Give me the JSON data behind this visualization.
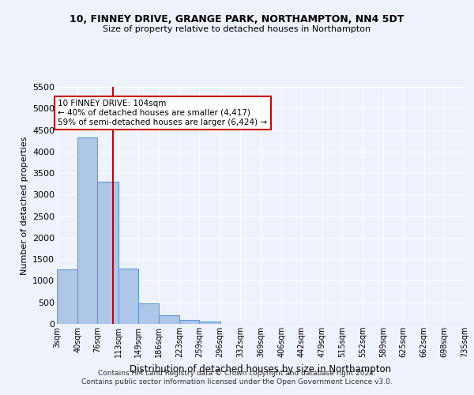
{
  "title_line1": "10, FINNEY DRIVE, GRANGE PARK, NORTHAMPTON, NN4 5DT",
  "title_line2": "Size of property relative to detached houses in Northampton",
  "xlabel": "Distribution of detached houses by size in Northampton",
  "ylabel": "Number of detached properties",
  "footer_line1": "Contains HM Land Registry data © Crown copyright and database right 2024.",
  "footer_line2": "Contains public sector information licensed under the Open Government Licence v3.0.",
  "annotation_line1": "10 FINNEY DRIVE: 104sqm",
  "annotation_line2": "← 40% of detached houses are smaller (4,417)",
  "annotation_line3": "59% of semi-detached houses are larger (6,424) →",
  "bar_color": "#aec6e8",
  "bar_edge_color": "#5b9bd5",
  "vline_color": "#cc0000",
  "background_color": "#eef2fb",
  "grid_color": "#ffffff",
  "bin_edges": [
    3,
    40,
    76,
    113,
    149,
    186,
    223,
    259,
    296,
    332,
    369,
    406,
    442,
    479,
    515,
    552,
    589,
    625,
    662,
    698,
    735
  ],
  "bin_labels": [
    "3sqm",
    "40sqm",
    "76sqm",
    "113sqm",
    "149sqm",
    "186sqm",
    "223sqm",
    "259sqm",
    "296sqm",
    "332sqm",
    "369sqm",
    "406sqm",
    "442sqm",
    "479sqm",
    "515sqm",
    "552sqm",
    "589sqm",
    "625sqm",
    "662sqm",
    "698sqm",
    "735sqm"
  ],
  "bar_heights": [
    1270,
    4330,
    3300,
    1280,
    480,
    210,
    85,
    55,
    0,
    0,
    0,
    0,
    0,
    0,
    0,
    0,
    0,
    0,
    0,
    0
  ],
  "vline_x": 104,
  "ylim": [
    0,
    5500
  ],
  "yticks": [
    0,
    500,
    1000,
    1500,
    2000,
    2500,
    3000,
    3500,
    4000,
    4500,
    5000,
    5500
  ]
}
